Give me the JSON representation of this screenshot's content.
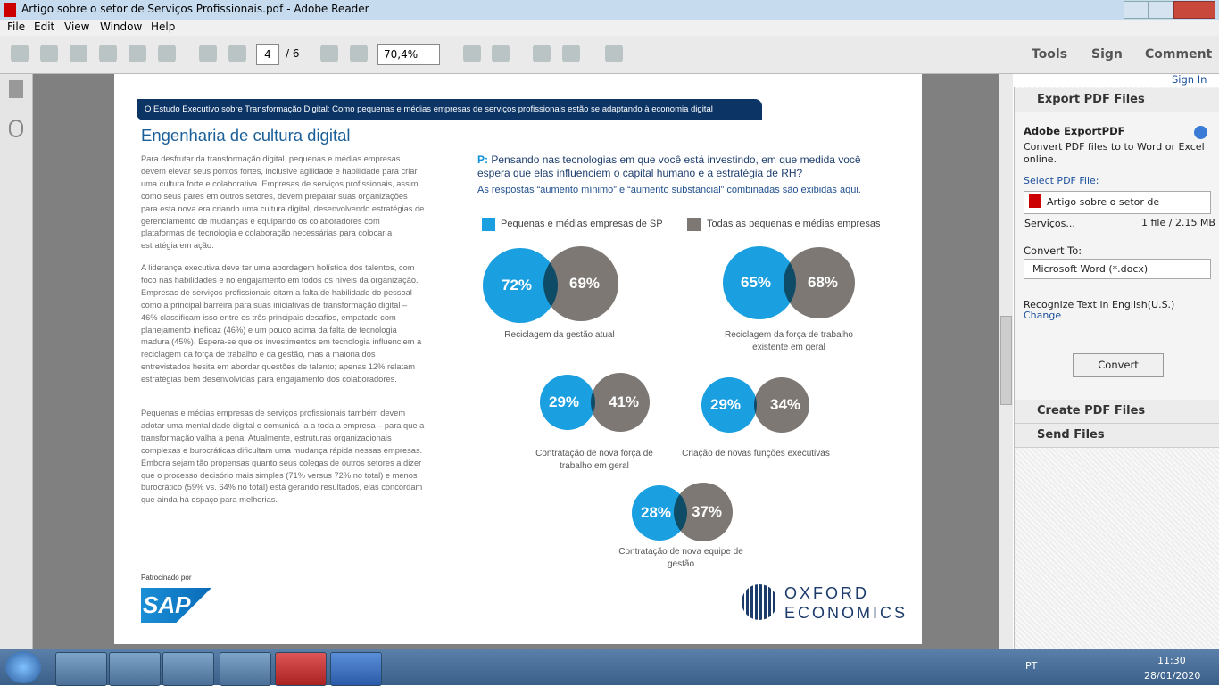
{
  "window": {
    "title": "Artigo sobre o setor de Serviços Profissionais.pdf - Adobe Reader"
  },
  "menu": [
    "File",
    "Edit",
    "View",
    "Window",
    "Help"
  ],
  "toolbar": {
    "page": "4",
    "pages": "/ 6",
    "zoom": "70,4%",
    "tabs": [
      "Tools",
      "Sign",
      "Comment"
    ]
  },
  "document": {
    "banner": "O Estudo Executivo sobre Transformação Digital: Como pequenas e médias empresas de serviços profissionais estão se adaptando à economia digital",
    "heading": "Engenharia de cultura digital",
    "paragraphs": [
      "Para desfrutar da transformação digital, pequenas e médias empresas devem elevar seus pontos fortes, inclusive agilidade e habilidade para criar uma cultura forte e colaborativa. Empresas de serviços profissionais, assim como seus pares em outros setores, devem preparar suas organizações para esta nova era criando uma cultura digital, desenvolvendo estratégias de gerenciamento de mudanças e equipando os colaboradores com plataformas de tecnologia e colaboração necessárias para colocar a estratégia em ação.",
      "A liderança executiva deve ter uma abordagem holística dos talentos, com foco nas habilidades e no engajamento em todos os níveis da organização. Empresas de serviços profissionais citam a falta de habilidade do pessoal como a principal barreira para suas iniciativas de transformação digital – 46% classificam isso entre os três principais desafios, empatado com planejamento ineficaz (46%) e um pouco acima da falta de tecnologia madura (45%). Espera-se que os investimentos em tecnologia influenciem a reciclagem da força de trabalho e da gestão, mas a maioria dos entrevistados hesita em abordar questões de talento; apenas 12% relatam estratégias bem desenvolvidas para engajamento dos colaboradores.",
      "Pequenas e médias empresas de serviços profissionais também devem adotar uma mentalidade digital e comunicá-la a toda a empresa – para que a transformação valha a pena. Atualmente, estruturas organizacionais complexas e burocráticas dificultam uma mudança rápida nessas empresas. Embora sejam tão propensas quanto seus colegas de outros setores a dizer que o processo decisório mais simples (71% versus 72% no total) e menos burocrático (59% vs. 64% no total) está gerando resultados, elas concordam que ainda há espaço para melhorias."
    ],
    "question_label": "P:",
    "question": "Pensando nas tecnologias em que você está investindo, em que medida você espera que elas influenciem o capital humano e a estratégia de RH?",
    "note": "As respostas “aumento mínimo” e “aumento substancial” combinadas são exibidas aqui.",
    "legend": [
      "Pequenas e médias empresas de SP",
      "Todas as pequenas e médias empresas"
    ],
    "items": [
      {
        "sp": "72%",
        "all": "69%",
        "label": "Reciclagem da gestão atual"
      },
      {
        "sp": "65%",
        "all": "68%",
        "label": "Reciclagem da força de trabalho existente em geral"
      },
      {
        "sp": "29%",
        "all": "41%",
        "label": "Contratação de nova força de trabalho em geral"
      },
      {
        "sp": "29%",
        "all": "34%",
        "label": "Criação de novas funções executivas"
      },
      {
        "sp": "28%",
        "all": "37%",
        "label": "Contratação de nova equipe de gestão"
      }
    ],
    "sponsor": "Patrocinado por",
    "sap": "SAP",
    "oxford": [
      "OXFORD",
      "ECONOMICS"
    ]
  },
  "panel": {
    "sign_in": "Sign In",
    "export": "Export PDF Files",
    "service": "Adobe ExportPDF",
    "desc": "Convert PDF files to to Word or Excel online.",
    "select": "Select PDF File:",
    "file": "Artigo sobre o setor de Serviços...",
    "size": "1 file / 2.15 MB",
    "convert_to": "Convert To:",
    "format": "Microsoft Word (*.docx)",
    "recognize": "Recognize Text in English(U.S.)",
    "change": "Change",
    "convert": "Convert",
    "create": "Create PDF Files",
    "send": "Send Files"
  },
  "taskbar": {
    "lang": "PT",
    "time": "11:30",
    "date": "28/01/2020"
  }
}
